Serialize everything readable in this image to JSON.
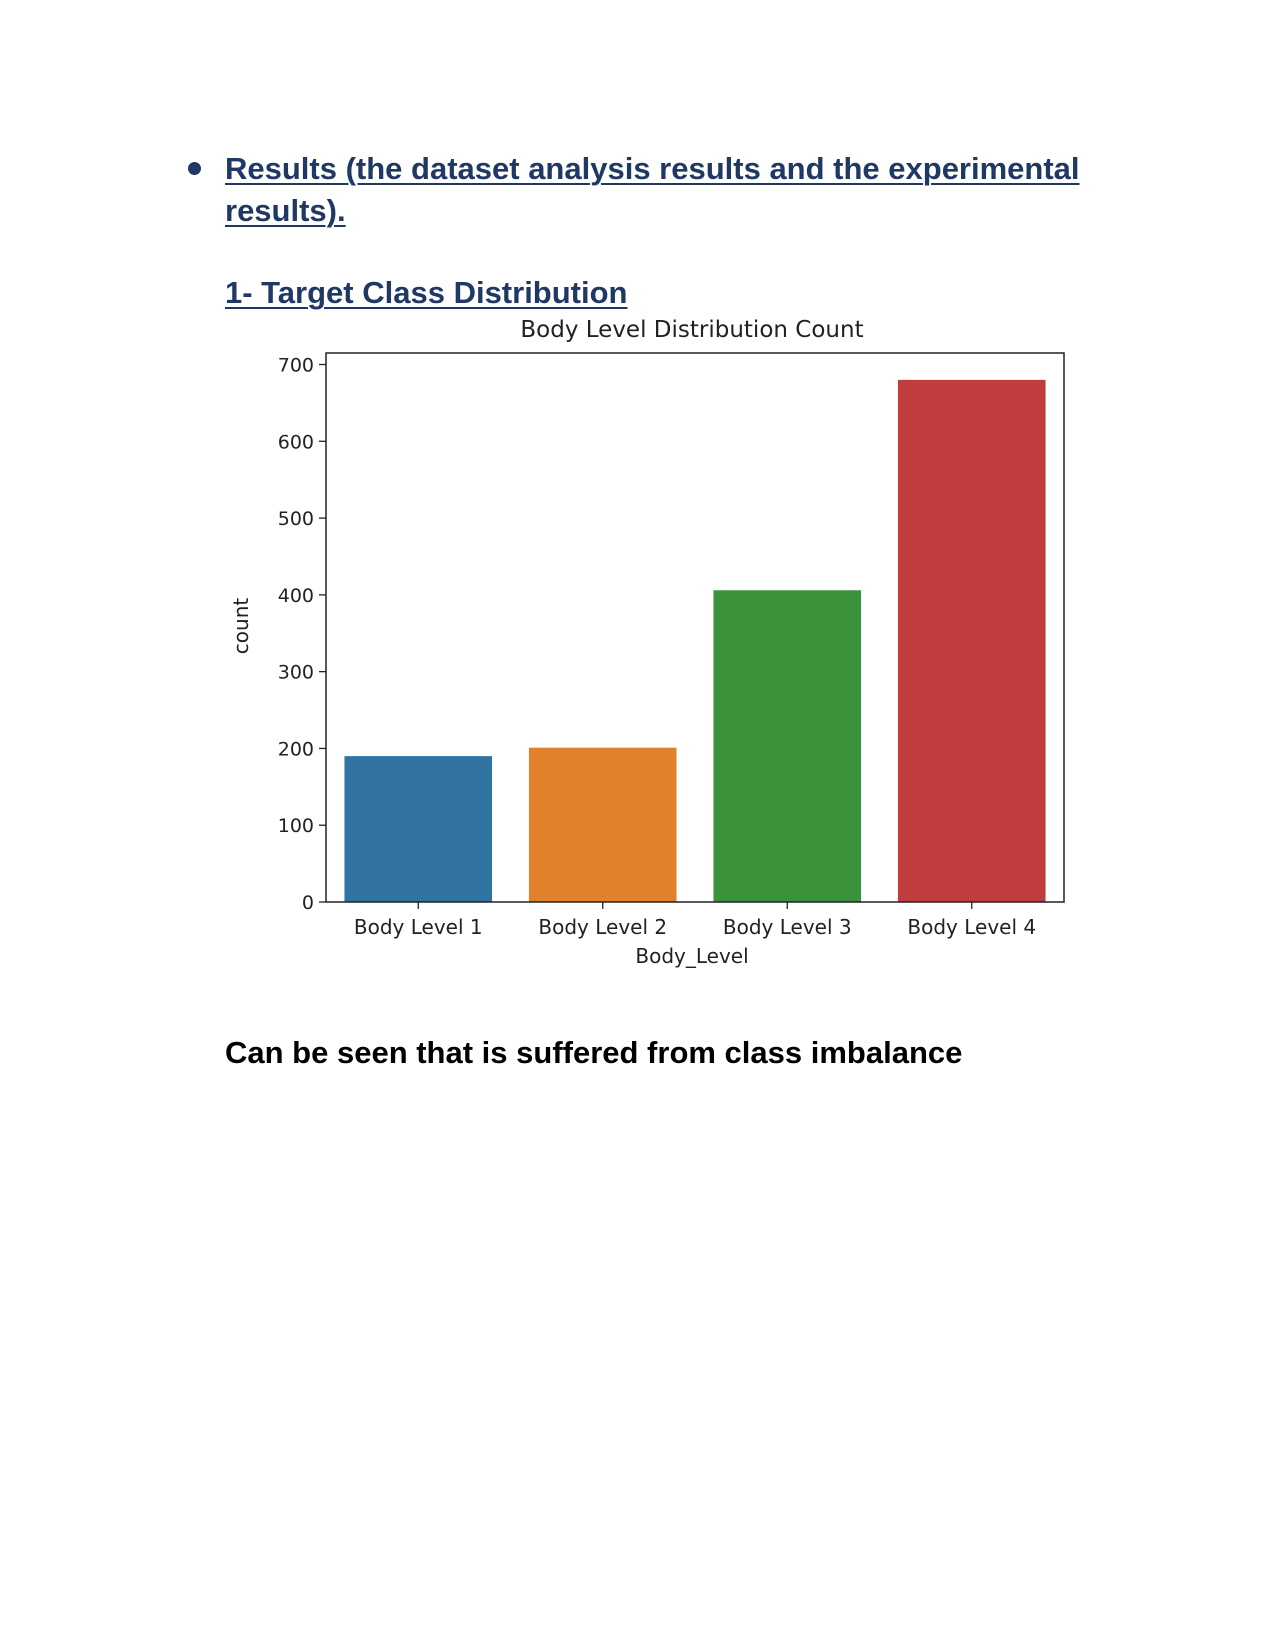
{
  "section": {
    "heading": "Results (the dataset analysis results and the experimental results).",
    "subheading": "1- Target Class Distribution",
    "conclusion": "Can be seen that is suffered from class imbalance"
  },
  "colors": {
    "heading": "#1f3864",
    "body_text": "#000000"
  },
  "chart_data": {
    "type": "bar",
    "title": "Body Level Distribution Count",
    "xlabel": "Body_Level",
    "ylabel": "count",
    "categories": [
      "Body Level 1",
      "Body Level 2",
      "Body Level 3",
      "Body Level 4"
    ],
    "values": [
      190,
      201,
      406,
      680
    ],
    "colors": [
      "#3274a1",
      "#e1812c",
      "#3a923a",
      "#c03d3e"
    ],
    "ylim": [
      0,
      715
    ],
    "yticks": [
      0,
      100,
      200,
      300,
      400,
      500,
      600,
      700
    ],
    "grid": false
  }
}
